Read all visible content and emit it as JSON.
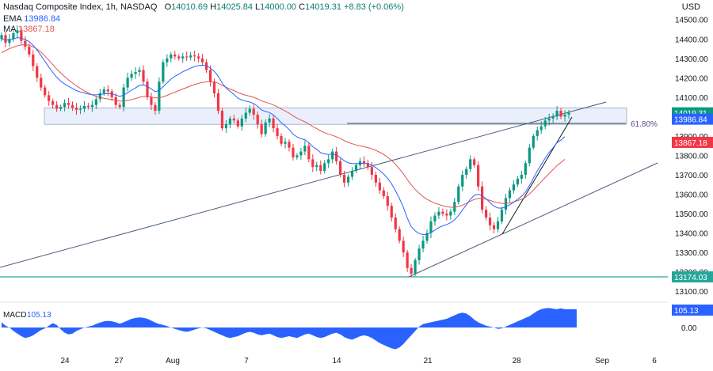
{
  "header": {
    "title": "Nasdaq Composite Index, 1h, NASDAQ",
    "open_label": "O",
    "open": "14010.69",
    "high_label": "H",
    "high": "14025.84",
    "low_label": "L",
    "low": "14000.00",
    "close_label": "C",
    "close": "14019.31",
    "change": "+8.83 (+0.06%)",
    "ema_label": "EMA",
    "ema_value": "13986.84",
    "ma_label": "MA",
    "ma_value": "13867.18",
    "currency": "USD"
  },
  "price_axis": {
    "ticks": [
      "14500.00",
      "14400.00",
      "14300.00",
      "14200.00",
      "14100.00",
      "14000.00",
      "13900.00",
      "13800.00",
      "13700.00",
      "13600.00",
      "13500.00",
      "13400.00",
      "13300.00",
      "13200.00",
      "13100.00"
    ],
    "ylim": [
      13060,
      14560
    ]
  },
  "badges": {
    "close": "14019.31",
    "ema": "13986.84",
    "ma": "13867.18",
    "support": "13174.03"
  },
  "annotations": {
    "fib_label": "61.80%"
  },
  "macd": {
    "label": "MACD",
    "value": "105.13",
    "axis_label": "0.00"
  },
  "time_axis": [
    "24",
    "27",
    "Aug",
    "7",
    "14",
    "21",
    "28",
    "Sep",
    "6"
  ],
  "colors": {
    "up": "#089981",
    "down": "#f23645",
    "ema": "#2962ff",
    "ma": "#e15554",
    "channel": "#4a5f7a",
    "support": "#26a69a",
    "zone_fill": "#eaf0fb",
    "zone_stroke": "#98a6c4",
    "macd_fill": "#2962ff",
    "fib": "#3f4a63"
  },
  "chart_data": {
    "type": "candlestick",
    "title": "Nasdaq Composite Index, 1h, NASDAQ",
    "closes": [
      14420,
      14380,
      14400,
      14430,
      14445,
      14390,
      14360,
      14320,
      14260,
      14200,
      14150,
      14110,
      14080,
      14060,
      14040,
      14050,
      14070,
      14060,
      14045,
      14035,
      14040,
      14055,
      14050,
      14060,
      14090,
      14120,
      14140,
      14130,
      14100,
      14060,
      14050,
      14150,
      14200,
      14220,
      14230,
      14240,
      14180,
      14100,
      14060,
      14030,
      14180,
      14280,
      14300,
      14320,
      14310,
      14300,
      14310,
      14305,
      14315,
      14310,
      14300,
      14280,
      14240,
      14180,
      14120,
      14030,
      13940,
      13960,
      13990,
      13980,
      13950,
      13990,
      14020,
      14040,
      14010,
      13960,
      13910,
      13970,
      13990,
      13940,
      13900,
      13860,
      13870,
      13840,
      13790,
      13800,
      13820,
      13850,
      13780,
      13740,
      13750,
      13720,
      13760,
      13780,
      13820,
      13770,
      13700,
      13660,
      13690,
      13720,
      13750,
      13770,
      13760,
      13740,
      13700,
      13660,
      13620,
      13590,
      13540,
      13480,
      13420,
      13360,
      13300,
      13220,
      13190,
      13260,
      13320,
      13360,
      13400,
      13460,
      13490,
      13510,
      13500,
      13490,
      13510,
      13560,
      13640,
      13700,
      13730,
      13780,
      13750,
      13640,
      13520,
      13480,
      13440,
      13420,
      13460,
      13520,
      13580,
      13620,
      13650,
      13680,
      13700,
      13760,
      13840,
      13900,
      13930,
      13950,
      13980,
      13990,
      14000,
      14030,
      14000,
      14010,
      14019.31
    ],
    "ema": [
      14400,
      14395,
      14395,
      14400,
      14407,
      14404,
      14397,
      14386,
      14367,
      14343,
      14315,
      14285,
      14255,
      14228,
      14202,
      14183,
      14168,
      14156,
      14145,
      14134,
      14127,
      14122,
      14116,
      14113,
      14112,
      14114,
      14117,
      14119,
      14117,
      14111,
      14104,
      14111,
      14123,
      14136,
      14148,
      14161,
      14163,
      14155,
      14143,
      14128,
      14135,
      14154,
      14173,
      14193,
      14208,
      14219,
      14231,
      14240,
      14250,
      14258,
      14263,
      14265,
      14262,
      14250,
      14233,
      14208,
      14173,
      14148,
      14130,
      14114,
      14095,
      14085,
      14080,
      14075,
      14067,
      14053,
      14034,
      14026,
      14021,
      14008,
      13990,
      13968,
      13953,
      13933,
      13910,
      13895,
      13886,
      13881,
      13865,
      13845,
      13831,
      13814,
      13808,
      13805,
      13807,
      13803,
      13789,
      13772,
      13762,
      13758,
      13757,
      13759,
      13759,
      13757,
      13750,
      13737,
      13722,
      13704,
      13682,
      13653,
      13618,
      13578,
      13532,
      13477,
      13433,
      13411,
      13397,
      13392,
      13393,
      13402,
      13415,
      13428,
      13437,
      13444,
      13453,
      13468,
      13491,
      13518,
      13545,
      13574,
      13594,
      13600,
      13592,
      13577,
      13557,
      13538,
      13529,
      13528,
      13535,
      13546,
      13559,
      13574,
      13589,
      13611,
      13644,
      13683,
      13720,
      13753,
      13786,
      13815,
      13839,
      13866,
      13879,
      13897,
      13986.84
    ],
    "ma": [
      14330,
      14340,
      14350,
      14358,
      14365,
      14369,
      14370,
      14368,
      14360,
      14348,
      14332,
      14312,
      14290,
      14268,
      14245,
      14225,
      14206,
      14189,
      14173,
      14158,
      14145,
      14133,
      14122,
      14112,
      14104,
      14098,
      14094,
      14091,
      14088,
      14084,
      14080,
      14080,
      14083,
      14088,
      14093,
      14100,
      14104,
      14104,
      14101,
      14096,
      14096,
      14102,
      14109,
      14118,
      14126,
      14134,
      14142,
      14150,
      14158,
      14165,
      14171,
      14176,
      14179,
      14180,
      14178,
      14172,
      14161,
      14151,
      14142,
      14134,
      14124,
      14116,
      14110,
      14105,
      14099,
      14091,
      14081,
      14074,
      14068,
      14060,
      14050,
      14039,
      14029,
      14017,
      14004,
      13992,
      13982,
      13973,
      13962,
      13949,
      13938,
      13926,
      13917,
      13909,
      13903,
      13896,
      13887,
      13876,
      13867,
      13860,
      13854,
      13849,
      13845,
      13840,
      13834,
      13826,
      13816,
      13805,
      13791,
      13774,
      13754,
      13731,
      13705,
      13676,
      13648,
      13625,
      13605,
      13588,
      13574,
      13563,
      13554,
      13547,
      13541,
      13536,
      13533,
      13533,
      13537,
      13544,
      13553,
      13564,
      13573,
      13578,
      13578,
      13574,
      13568,
      13561,
      13556,
      13553,
      13553,
      13555,
      13560,
      13567,
      13574,
      13585,
      13601,
      13622,
      13643,
      13664,
      13686,
      13707,
      13727,
      13748,
      13764,
      13780,
      13867.18
    ],
    "support_level": 13174.03,
    "fib_level": "61.80%",
    "macd": [
      30,
      10,
      0,
      -20,
      -35,
      -50,
      -60,
      -55,
      -45,
      -30,
      -15,
      -5,
      10,
      25,
      15,
      -10,
      -30,
      -40,
      -35,
      -20,
      -10,
      0,
      5,
      10,
      20,
      28,
      35,
      38,
      36,
      30,
      22,
      30,
      40,
      50,
      55,
      58,
      56,
      50,
      40,
      28,
      20,
      15,
      8,
      0,
      -8,
      -15,
      -22,
      -25,
      -20,
      -12,
      -5,
      0,
      -5,
      -15,
      -25,
      -35,
      -45,
      -55,
      -60,
      -55,
      -50,
      -40,
      -30,
      -25,
      -30,
      -40,
      -45,
      -40,
      -35,
      -45,
      -55,
      -60,
      -55,
      -50,
      -55,
      -60,
      -50,
      -40,
      -35,
      -45,
      -55,
      -60,
      -55,
      -45,
      -35,
      -30,
      -40,
      -55,
      -65,
      -70,
      -60,
      -50,
      -45,
      -50,
      -60,
      -75,
      -90,
      -100,
      -110,
      -120,
      -125,
      -115,
      -95,
      -70,
      -45,
      -20,
      5,
      20,
      25,
      30,
      35,
      40,
      45,
      50,
      60,
      70,
      80,
      85,
      80,
      65,
      45,
      30,
      20,
      10,
      5,
      0,
      -8,
      -5,
      5,
      15,
      25,
      35,
      45,
      55,
      65,
      80,
      95,
      105,
      110,
      112,
      108,
      105,
      110,
      105.13,
      105.13,
      105.13,
      105.13
    ],
    "xlabel": "",
    "ylabel": ""
  }
}
